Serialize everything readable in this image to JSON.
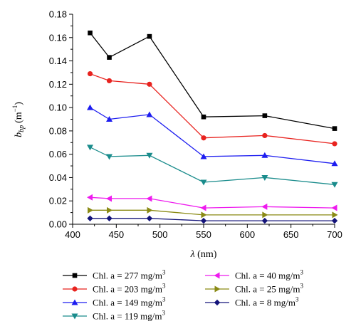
{
  "chart_data": {
    "type": "line",
    "xlabel": {
      "symbol": "λ",
      "unit": " (nm)"
    },
    "ylabel": {
      "main": "b",
      "sub": "bp",
      "unit": "(m",
      "sup": "−1",
      "close": ")"
    },
    "xlim": [
      400,
      700
    ],
    "ylim": [
      0,
      0.18
    ],
    "x_ticks": [
      "400",
      "450",
      "500",
      "550",
      "600",
      "650",
      "700"
    ],
    "y_ticks": [
      "0.00",
      "0.02",
      "0.04",
      "0.06",
      "0.08",
      "0.10",
      "0.12",
      "0.14",
      "0.16",
      "0.18"
    ],
    "x": [
      420,
      442,
      488,
      550,
      620,
      700
    ],
    "series": [
      {
        "name": "Chl. a = 277 mg/m3",
        "label_main": "Chl. a = 277 mg/m",
        "label_sup": "3",
        "marker": "square",
        "color": "#000000",
        "values": [
          0.164,
          0.143,
          0.161,
          0.092,
          0.093,
          0.082
        ]
      },
      {
        "name": "Chl. a = 203 mg/m3",
        "label_main": "Chl. a = 203 mg/m",
        "label_sup": "3",
        "marker": "circle",
        "color": "#e8231f",
        "values": [
          0.129,
          0.123,
          0.12,
          0.074,
          0.076,
          0.069
        ]
      },
      {
        "name": "Chl. a = 149 mg/m3",
        "label_main": "Chl. a = 149 mg/m",
        "label_sup": "3",
        "marker": "triangle-up",
        "color": "#1d1df0",
        "values": [
          0.1,
          0.09,
          0.094,
          0.058,
          0.059,
          0.052
        ]
      },
      {
        "name": "Chl. a = 119 mg/m3",
        "label_main": "Chl. a = 119 mg/m",
        "label_sup": "3",
        "marker": "triangle-down",
        "color": "#1a8c8c",
        "values": [
          0.066,
          0.058,
          0.059,
          0.036,
          0.04,
          0.034
        ]
      },
      {
        "name": "Chl. a = 40 mg/m3",
        "label_main": "Chl. a = 40 mg/m",
        "label_sup": "3",
        "marker": "triangle-left",
        "color": "#ee1aee",
        "values": [
          0.023,
          0.022,
          0.022,
          0.014,
          0.015,
          0.014
        ]
      },
      {
        "name": "Chl. a = 25 mg/m3",
        "label_main": "Chl. a = 25 mg/m",
        "label_sup": "3",
        "marker": "triangle-right",
        "color": "#8a8a14",
        "values": [
          0.012,
          0.012,
          0.012,
          0.008,
          0.008,
          0.008
        ]
      },
      {
        "name": "Chl. a = 8 mg/m3",
        "label_main": "Chl. a = 8 mg/m",
        "label_sup": "3",
        "marker": "diamond",
        "color": "#14147a",
        "values": [
          0.005,
          0.005,
          0.005,
          0.003,
          0.003,
          0.003
        ]
      }
    ],
    "grid": false,
    "legend_position": "bottom"
  }
}
